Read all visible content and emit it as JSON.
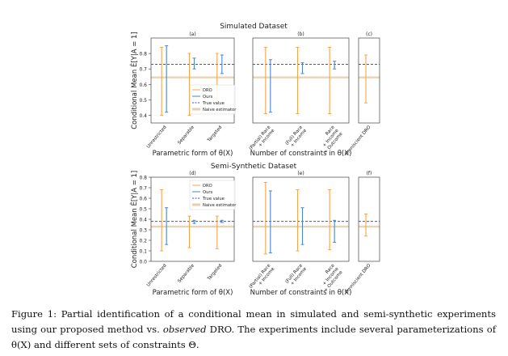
{
  "figure": {
    "colors": {
      "dro": "#f5a54a",
      "ours": "#4a86c8",
      "true": "#3355dd",
      "naive": "#e8cfae"
    },
    "chart_data": [
      {
        "type": "interval",
        "title": "Simulated Dataset",
        "ylabel": "Conditional Mean Ê[Y|A = 1]",
        "ylim": [
          0.35,
          0.9
        ],
        "yticks": [
          "0.4",
          "0.5",
          "0.6",
          "0.7",
          "0.8"
        ],
        "legend": [
          "DRO",
          "Ours",
          "True value",
          "Naive estimator"
        ],
        "true_value": 0.73,
        "naive_value": 0.645,
        "panels": [
          {
            "label": "(a)",
            "xlabel": "Parametric form of θ(X)",
            "categories": [
              "Unrestricted",
              "Separable",
              "Targeted"
            ],
            "dro": [
              [
                0.4,
                0.84
              ],
              [
                0.4,
                0.8
              ],
              [
                0.47,
                0.8
              ]
            ],
            "ours": [
              [
                0.42,
                0.85
              ],
              [
                0.7,
                0.77
              ],
              [
                0.67,
                0.79
              ]
            ]
          },
          {
            "label": "(b)",
            "xlabel": "Number of constraints in θ(X)",
            "categories": [
              "(Partial) Race\n+ Income",
              "(Full) Race\n+ Income",
              "Race\n+ Income\n+ Outcome"
            ],
            "dro": [
              [
                0.41,
                0.84
              ],
              [
                0.41,
                0.84
              ],
              [
                0.41,
                0.84
              ]
            ],
            "ours": [
              [
                0.42,
                0.76
              ],
              [
                0.67,
                0.74
              ],
              [
                0.7,
                0.75
              ]
            ]
          },
          {
            "label": "(c)",
            "xlabel": "",
            "categories": [
              "Omniscient DRO"
            ],
            "dro": [
              [
                0.48,
                0.79
              ]
            ],
            "ours": []
          }
        ]
      },
      {
        "type": "interval",
        "title": "Semi-Synthetic Dataset",
        "ylabel": "Conditional Mean Ê[Y|A = 1]",
        "ylim": [
          0.0,
          0.8
        ],
        "yticks": [
          "0.0",
          "0.1",
          "0.2",
          "0.3",
          "0.4",
          "0.5",
          "0.6",
          "0.7",
          "0.8"
        ],
        "legend": [
          "DRO",
          "Ours",
          "True value",
          "Naive estimator"
        ],
        "true_value": 0.38,
        "naive_value": 0.33,
        "panels": [
          {
            "label": "(d)",
            "xlabel": "Parametric form of θ(X)",
            "categories": [
              "Unrestricted",
              "Separable",
              "Targeted"
            ],
            "dro": [
              [
                0.1,
                0.68
              ],
              [
                0.13,
                0.43
              ],
              [
                0.12,
                0.43
              ]
            ],
            "ours": [
              [
                0.16,
                0.51
              ],
              [
                0.36,
                0.39
              ],
              [
                0.37,
                0.39
              ]
            ]
          },
          {
            "label": "(e)",
            "xlabel": "Number of constraints in θ(X)",
            "categories": [
              "(Partial) Race\n+ Income",
              "(Full) Race\n+ Income",
              "Race\n+ Income\n+ Outcome"
            ],
            "dro": [
              [
                0.07,
                0.75
              ],
              [
                0.1,
                0.68
              ],
              [
                0.11,
                0.68
              ]
            ],
            "ours": [
              [
                0.08,
                0.67
              ],
              [
                0.16,
                0.51
              ],
              [
                0.18,
                0.39
              ]
            ]
          },
          {
            "label": "(f)",
            "xlabel": "",
            "categories": [
              "Omniscient DRO"
            ],
            "dro": [
              [
                0.24,
                0.45
              ]
            ],
            "ours": []
          }
        ]
      }
    ]
  },
  "caption": {
    "prefix": "Figure 1:",
    "part1": " Partial identification of a conditional mean in simulated and semi-synthetic experiments using our proposed method vs. ",
    "emph": "observed",
    "part2": " DRO. The experiments include several parameterizations of θ(X) and different sets of constraints Θ."
  }
}
